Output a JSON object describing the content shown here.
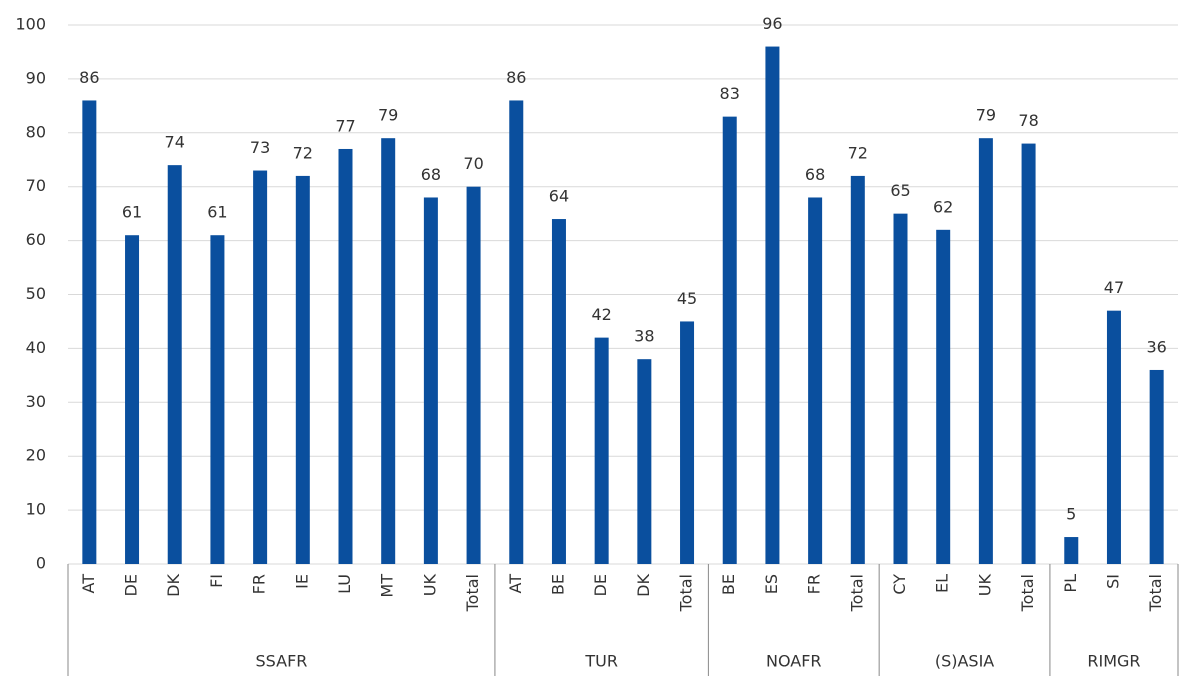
{
  "chart_data": {
    "type": "bar",
    "color": "#0a4f9e",
    "grid": true,
    "ylim": [
      0,
      100
    ],
    "yticks": [
      0,
      10,
      20,
      30,
      40,
      50,
      60,
      70,
      80,
      90,
      100
    ],
    "groups": [
      {
        "name": "SSAFR",
        "categories": [
          "AT",
          "DE",
          "DK",
          "FI",
          "FR",
          "IE",
          "LU",
          "MT",
          "UK",
          "Total"
        ],
        "values": [
          86,
          61,
          74,
          61,
          73,
          72,
          77,
          79,
          68,
          70
        ]
      },
      {
        "name": "TUR",
        "categories": [
          "AT",
          "BE",
          "DE",
          "DK",
          "Total"
        ],
        "values": [
          86,
          64,
          42,
          38,
          45
        ]
      },
      {
        "name": "NOAFR",
        "categories": [
          "BE",
          "ES",
          "FR",
          "Total"
        ],
        "values": [
          83,
          96,
          68,
          72
        ]
      },
      {
        "name": "(S)ASIA",
        "categories": [
          "CY",
          "EL",
          "UK",
          "Total"
        ],
        "values": [
          65,
          62,
          79,
          78
        ]
      },
      {
        "name": "RIMGR",
        "categories": [
          "PL",
          "SI",
          "Total"
        ],
        "values": [
          5,
          47,
          36
        ]
      }
    ]
  }
}
